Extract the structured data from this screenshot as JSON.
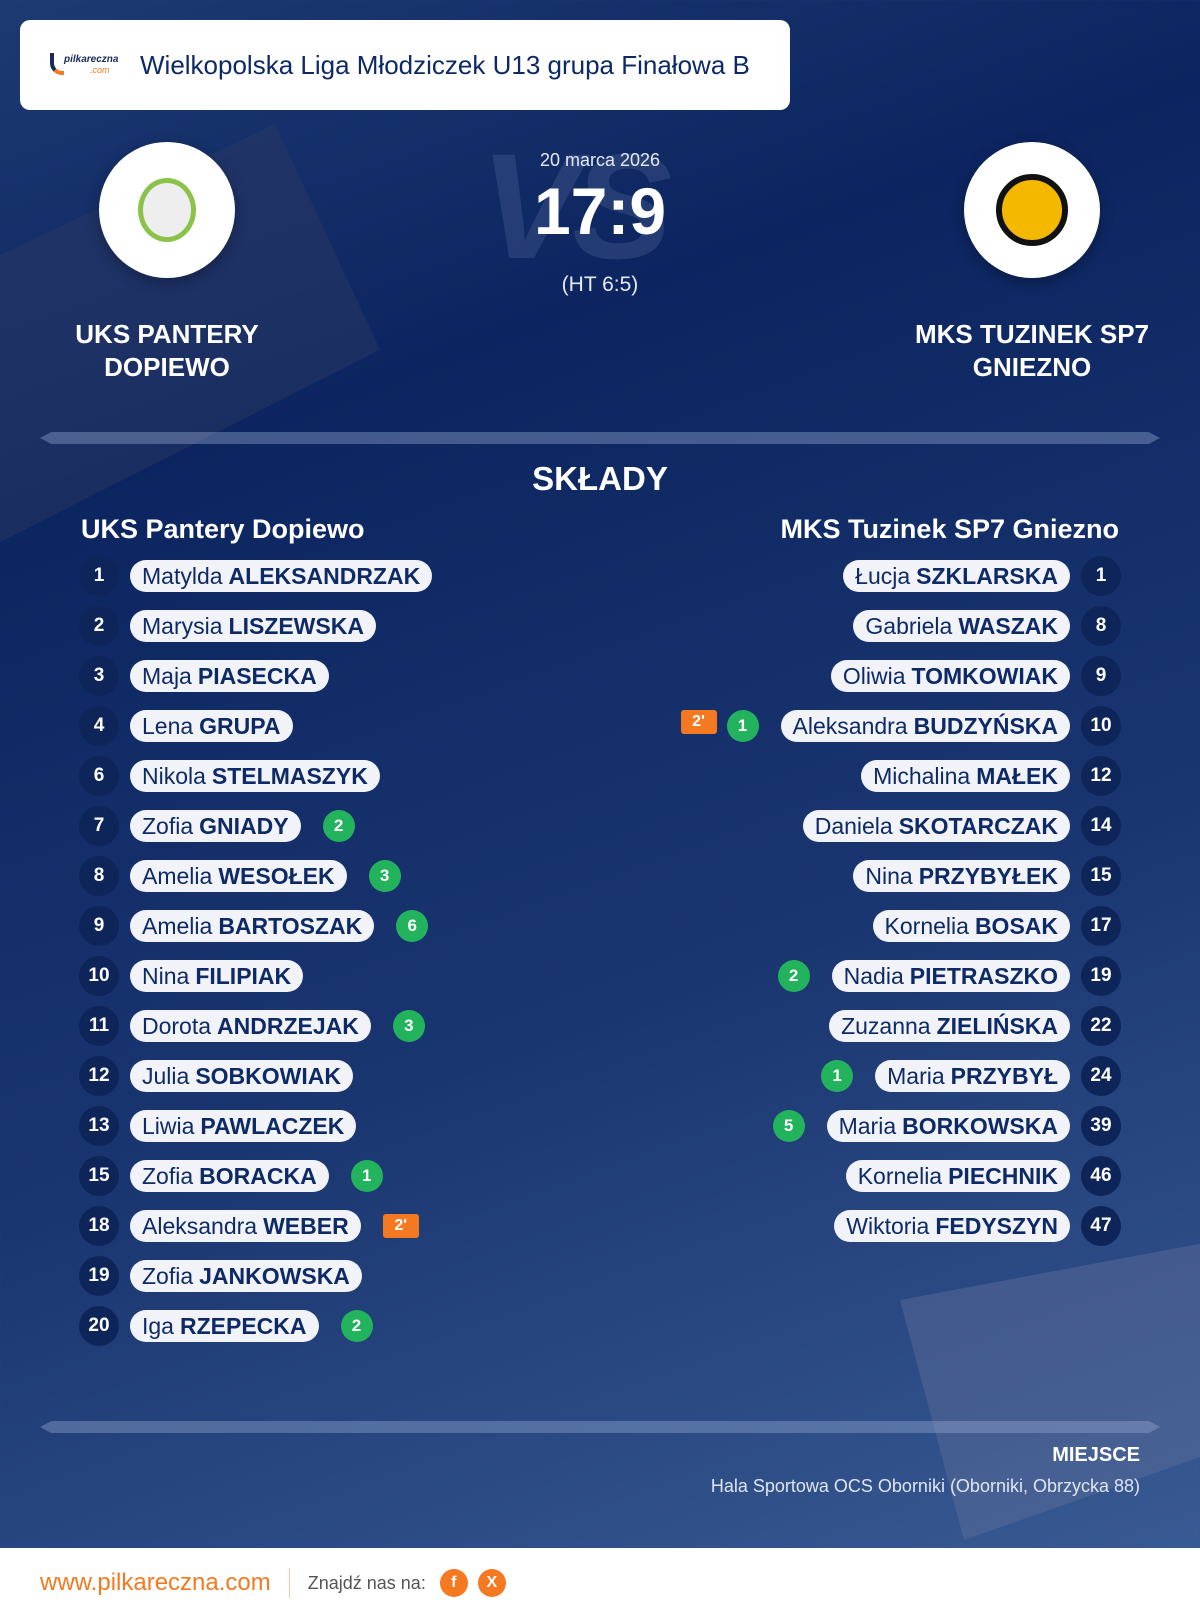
{
  "header": {
    "brand": "pilkareczna",
    "brand_suffix": ".com",
    "league": "Wielkopolska Liga Młodziczek U13 grupa Finałowa B"
  },
  "match": {
    "date": "20 marca 2026",
    "score": "17:9",
    "halftime": "(HT 6:5)",
    "vs_watermark": "VS",
    "home": "UKS PANTERY DOPIEWO",
    "away": "MKS TUZINEK SP7 GNIEZNO"
  },
  "lineups": {
    "title": "SKŁADY",
    "home": {
      "team": "UKS Pantery Dopiewo",
      "players": [
        {
          "number": "1",
          "first": "Matylda",
          "last": "ALEKSANDRZAK",
          "goals": null,
          "penalty": null
        },
        {
          "number": "2",
          "first": "Marysia",
          "last": "LISZEWSKA",
          "goals": null,
          "penalty": null
        },
        {
          "number": "3",
          "first": "Maja",
          "last": "PIASECKA",
          "goals": null,
          "penalty": null
        },
        {
          "number": "4",
          "first": "Lena",
          "last": "GRUPA",
          "goals": null,
          "penalty": null
        },
        {
          "number": "6",
          "first": "Nikola",
          "last": "STELMASZYK",
          "goals": null,
          "penalty": null
        },
        {
          "number": "7",
          "first": "Zofia",
          "last": "GNIADY",
          "goals": "2",
          "penalty": null
        },
        {
          "number": "8",
          "first": "Amelia",
          "last": "WESOŁEK",
          "goals": "3",
          "penalty": null
        },
        {
          "number": "9",
          "first": "Amelia",
          "last": "BARTOSZAK",
          "goals": "6",
          "penalty": null
        },
        {
          "number": "10",
          "first": "Nina",
          "last": "FILIPIAK",
          "goals": null,
          "penalty": null
        },
        {
          "number": "11",
          "first": "Dorota",
          "last": "ANDRZEJAK",
          "goals": "3",
          "penalty": null
        },
        {
          "number": "12",
          "first": "Julia",
          "last": "SOBKOWIAK",
          "goals": null,
          "penalty": null
        },
        {
          "number": "13",
          "first": "Liwia",
          "last": "PAWLACZEK",
          "goals": null,
          "penalty": null
        },
        {
          "number": "15",
          "first": "Zofia",
          "last": "BORACKA",
          "goals": "1",
          "penalty": null
        },
        {
          "number": "18",
          "first": "Aleksandra",
          "last": "WEBER",
          "goals": null,
          "penalty": "2'"
        },
        {
          "number": "19",
          "first": "Zofia",
          "last": "JANKOWSKA",
          "goals": null,
          "penalty": null
        },
        {
          "number": "20",
          "first": "Iga",
          "last": "RZEPECKA",
          "goals": "2",
          "penalty": null
        }
      ]
    },
    "away": {
      "team": "MKS Tuzinek SP7 Gniezno",
      "players": [
        {
          "number": "1",
          "first": "Łucja",
          "last": "SZKLARSKA",
          "goals": null,
          "penalty": null
        },
        {
          "number": "8",
          "first": "Gabriela",
          "last": "WASZAK",
          "goals": null,
          "penalty": null
        },
        {
          "number": "9",
          "first": "Oliwia",
          "last": "TOMKOWIAK",
          "goals": null,
          "penalty": null
        },
        {
          "number": "10",
          "first": "Aleksandra",
          "last": "BUDZYŃSKA",
          "goals": "1",
          "penalty": "2'"
        },
        {
          "number": "12",
          "first": "Michalina",
          "last": "MAŁEK",
          "goals": null,
          "penalty": null
        },
        {
          "number": "14",
          "first": "Daniela",
          "last": "SKOTARCZAK",
          "goals": null,
          "penalty": null
        },
        {
          "number": "15",
          "first": "Nina",
          "last": "PRZYBYŁEK",
          "goals": null,
          "penalty": null
        },
        {
          "number": "17",
          "first": "Kornelia",
          "last": "BOSAK",
          "goals": null,
          "penalty": null
        },
        {
          "number": "19",
          "first": "Nadia",
          "last": "PIETRASZKO",
          "goals": "2",
          "penalty": null
        },
        {
          "number": "22",
          "first": "Zuzanna",
          "last": "ZIELIŃSKA",
          "goals": null,
          "penalty": null
        },
        {
          "number": "24",
          "first": "Maria",
          "last": "PRZYBYŁ",
          "goals": "1",
          "penalty": null
        },
        {
          "number": "39",
          "first": "Maria",
          "last": "BORKOWSKA",
          "goals": "5",
          "penalty": null
        },
        {
          "number": "46",
          "first": "Kornelia",
          "last": "PIECHNIK",
          "goals": null,
          "penalty": null
        },
        {
          "number": "47",
          "first": "Wiktoria",
          "last": "FEDYSZYN",
          "goals": null,
          "penalty": null
        }
      ]
    }
  },
  "venue": {
    "label": "MIEJSCE",
    "value": "Hala Sportowa OCS Oborniki (Oborniki, Obrzycka 88)"
  },
  "footer": {
    "site": "www.pilkareczna.com",
    "find_us": "Znajdź nas na:",
    "social": [
      {
        "icon": "facebook-icon",
        "glyph": "f"
      },
      {
        "icon": "x-icon",
        "glyph": "X"
      }
    ]
  },
  "colors": {
    "navy": "#0d2a66",
    "goal": "#23b35d",
    "penalty": "#f47920",
    "accent": "#f47920"
  }
}
